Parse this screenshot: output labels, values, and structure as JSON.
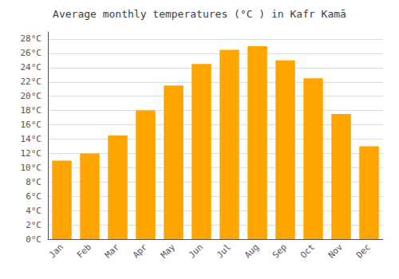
{
  "chart_data": {
    "type": "bar",
    "title": "Average monthly temperatures (°C ) in Kafr Kamā",
    "categories": [
      "Jan",
      "Feb",
      "Mar",
      "Apr",
      "May",
      "Jun",
      "Jul",
      "Aug",
      "Sep",
      "Oct",
      "Nov",
      "Dec"
    ],
    "values": [
      11,
      12,
      14.5,
      18,
      21.5,
      24.5,
      26.5,
      27,
      25,
      22.5,
      17.5,
      13
    ],
    "color": "#FFA500",
    "ylim": [
      0,
      29
    ],
    "yticks": [
      {
        "value": 0,
        "label": "0°C"
      },
      {
        "value": 2,
        "label": "2°C"
      },
      {
        "value": 4,
        "label": "4°C"
      },
      {
        "value": 6,
        "label": "6°C"
      },
      {
        "value": 8,
        "label": "8°C"
      },
      {
        "value": 10,
        "label": "10°C"
      },
      {
        "value": 12,
        "label": "12°C"
      },
      {
        "value": 14,
        "label": "14°C"
      },
      {
        "value": 16,
        "label": "16°C"
      },
      {
        "value": 18,
        "label": "18°C"
      },
      {
        "value": 20,
        "label": "20°C"
      },
      {
        "value": 22,
        "label": "22°C"
      },
      {
        "value": 24,
        "label": "24°C"
      },
      {
        "value": 26,
        "label": "26°C"
      },
      {
        "value": 28,
        "label": "28°C"
      }
    ],
    "grid": true
  }
}
